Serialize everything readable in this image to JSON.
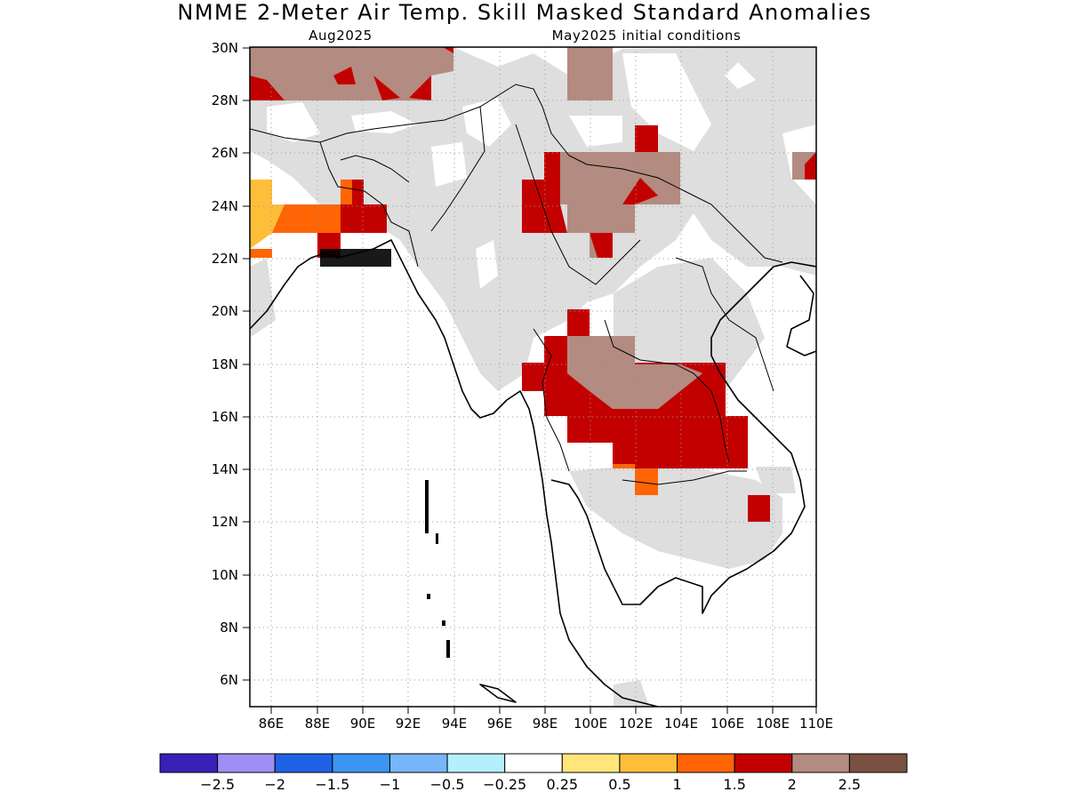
{
  "title": "NMME 2-Meter Air Temp. Skill Masked Standard Anomalies",
  "subtitle_left": "Aug2025",
  "subtitle_right": "May2025 initial conditions",
  "lat_labels": [
    "30N",
    "28N",
    "26N",
    "24N",
    "22N",
    "20N",
    "18N",
    "16N",
    "14N",
    "12N",
    "10N",
    "8N",
    "6N"
  ],
  "lon_labels": [
    "86E",
    "88E",
    "90E",
    "92E",
    "94E",
    "96E",
    "98E",
    "100E",
    "102E",
    "104E",
    "106E",
    "108E",
    "110E"
  ],
  "colorbar": {
    "colors": [
      "#3a20b8",
      "#9f8ef5",
      "#1f62e6",
      "#3c95f3",
      "#76b6f9",
      "#b3f0fb",
      "#ffffff",
      "#ffe57a",
      "#ffbe3a",
      "#ff6405",
      "#c30000",
      "#b38b80",
      "#7a5040"
    ],
    "labels": [
      "-2.5",
      "-2",
      "-1.5",
      "-1",
      "-0.5",
      "-0.25",
      "0.25",
      "0.5",
      "1",
      "1.5",
      "2",
      "2.5"
    ]
  },
  "fills": {
    "masked": "#dedede",
    "brown": "#b38b80",
    "red": "#c30000",
    "orange": "#ff6405",
    "gold": "#ffbe3a"
  }
}
